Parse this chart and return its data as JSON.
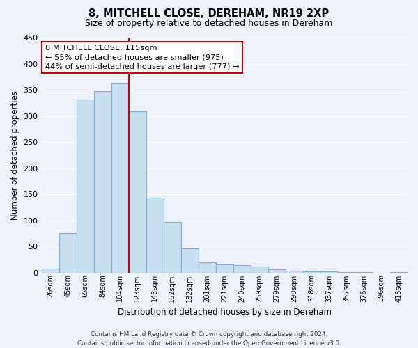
{
  "title": "8, MITCHELL CLOSE, DEREHAM, NR19 2XP",
  "subtitle": "Size of property relative to detached houses in Dereham",
  "xlabel": "Distribution of detached houses by size in Dereham",
  "ylabel": "Number of detached properties",
  "bar_color": "#c8dff0",
  "bar_edge_color": "#7ab0d4",
  "bin_labels": [
    "26sqm",
    "45sqm",
    "65sqm",
    "84sqm",
    "104sqm",
    "123sqm",
    "143sqm",
    "162sqm",
    "182sqm",
    "201sqm",
    "221sqm",
    "240sqm",
    "259sqm",
    "279sqm",
    "298sqm",
    "318sqm",
    "337sqm",
    "357sqm",
    "376sqm",
    "396sqm",
    "415sqm"
  ],
  "bar_heights": [
    7,
    76,
    331,
    348,
    363,
    309,
    144,
    97,
    46,
    19,
    15,
    14,
    11,
    6,
    4,
    2,
    2,
    1,
    1,
    0,
    1
  ],
  "ylim": [
    0,
    450
  ],
  "yticks": [
    0,
    50,
    100,
    150,
    200,
    250,
    300,
    350,
    400,
    450
  ],
  "property_line_label": "8 MITCHELL CLOSE: 115sqm",
  "annotation_line1": "← 55% of detached houses are smaller (975)",
  "annotation_line2": "44% of semi-detached houses are larger (777) →",
  "footer_line1": "Contains HM Land Registry data © Crown copyright and database right 2024.",
  "footer_line2": "Contains public sector information licensed under the Open Government Licence v3.0.",
  "background_color": "#eef2fb",
  "grid_color": "#ffffff",
  "annotation_box_color": "#ffffff",
  "annotation_box_edge": "#cc0000",
  "property_line_color": "#cc0000"
}
